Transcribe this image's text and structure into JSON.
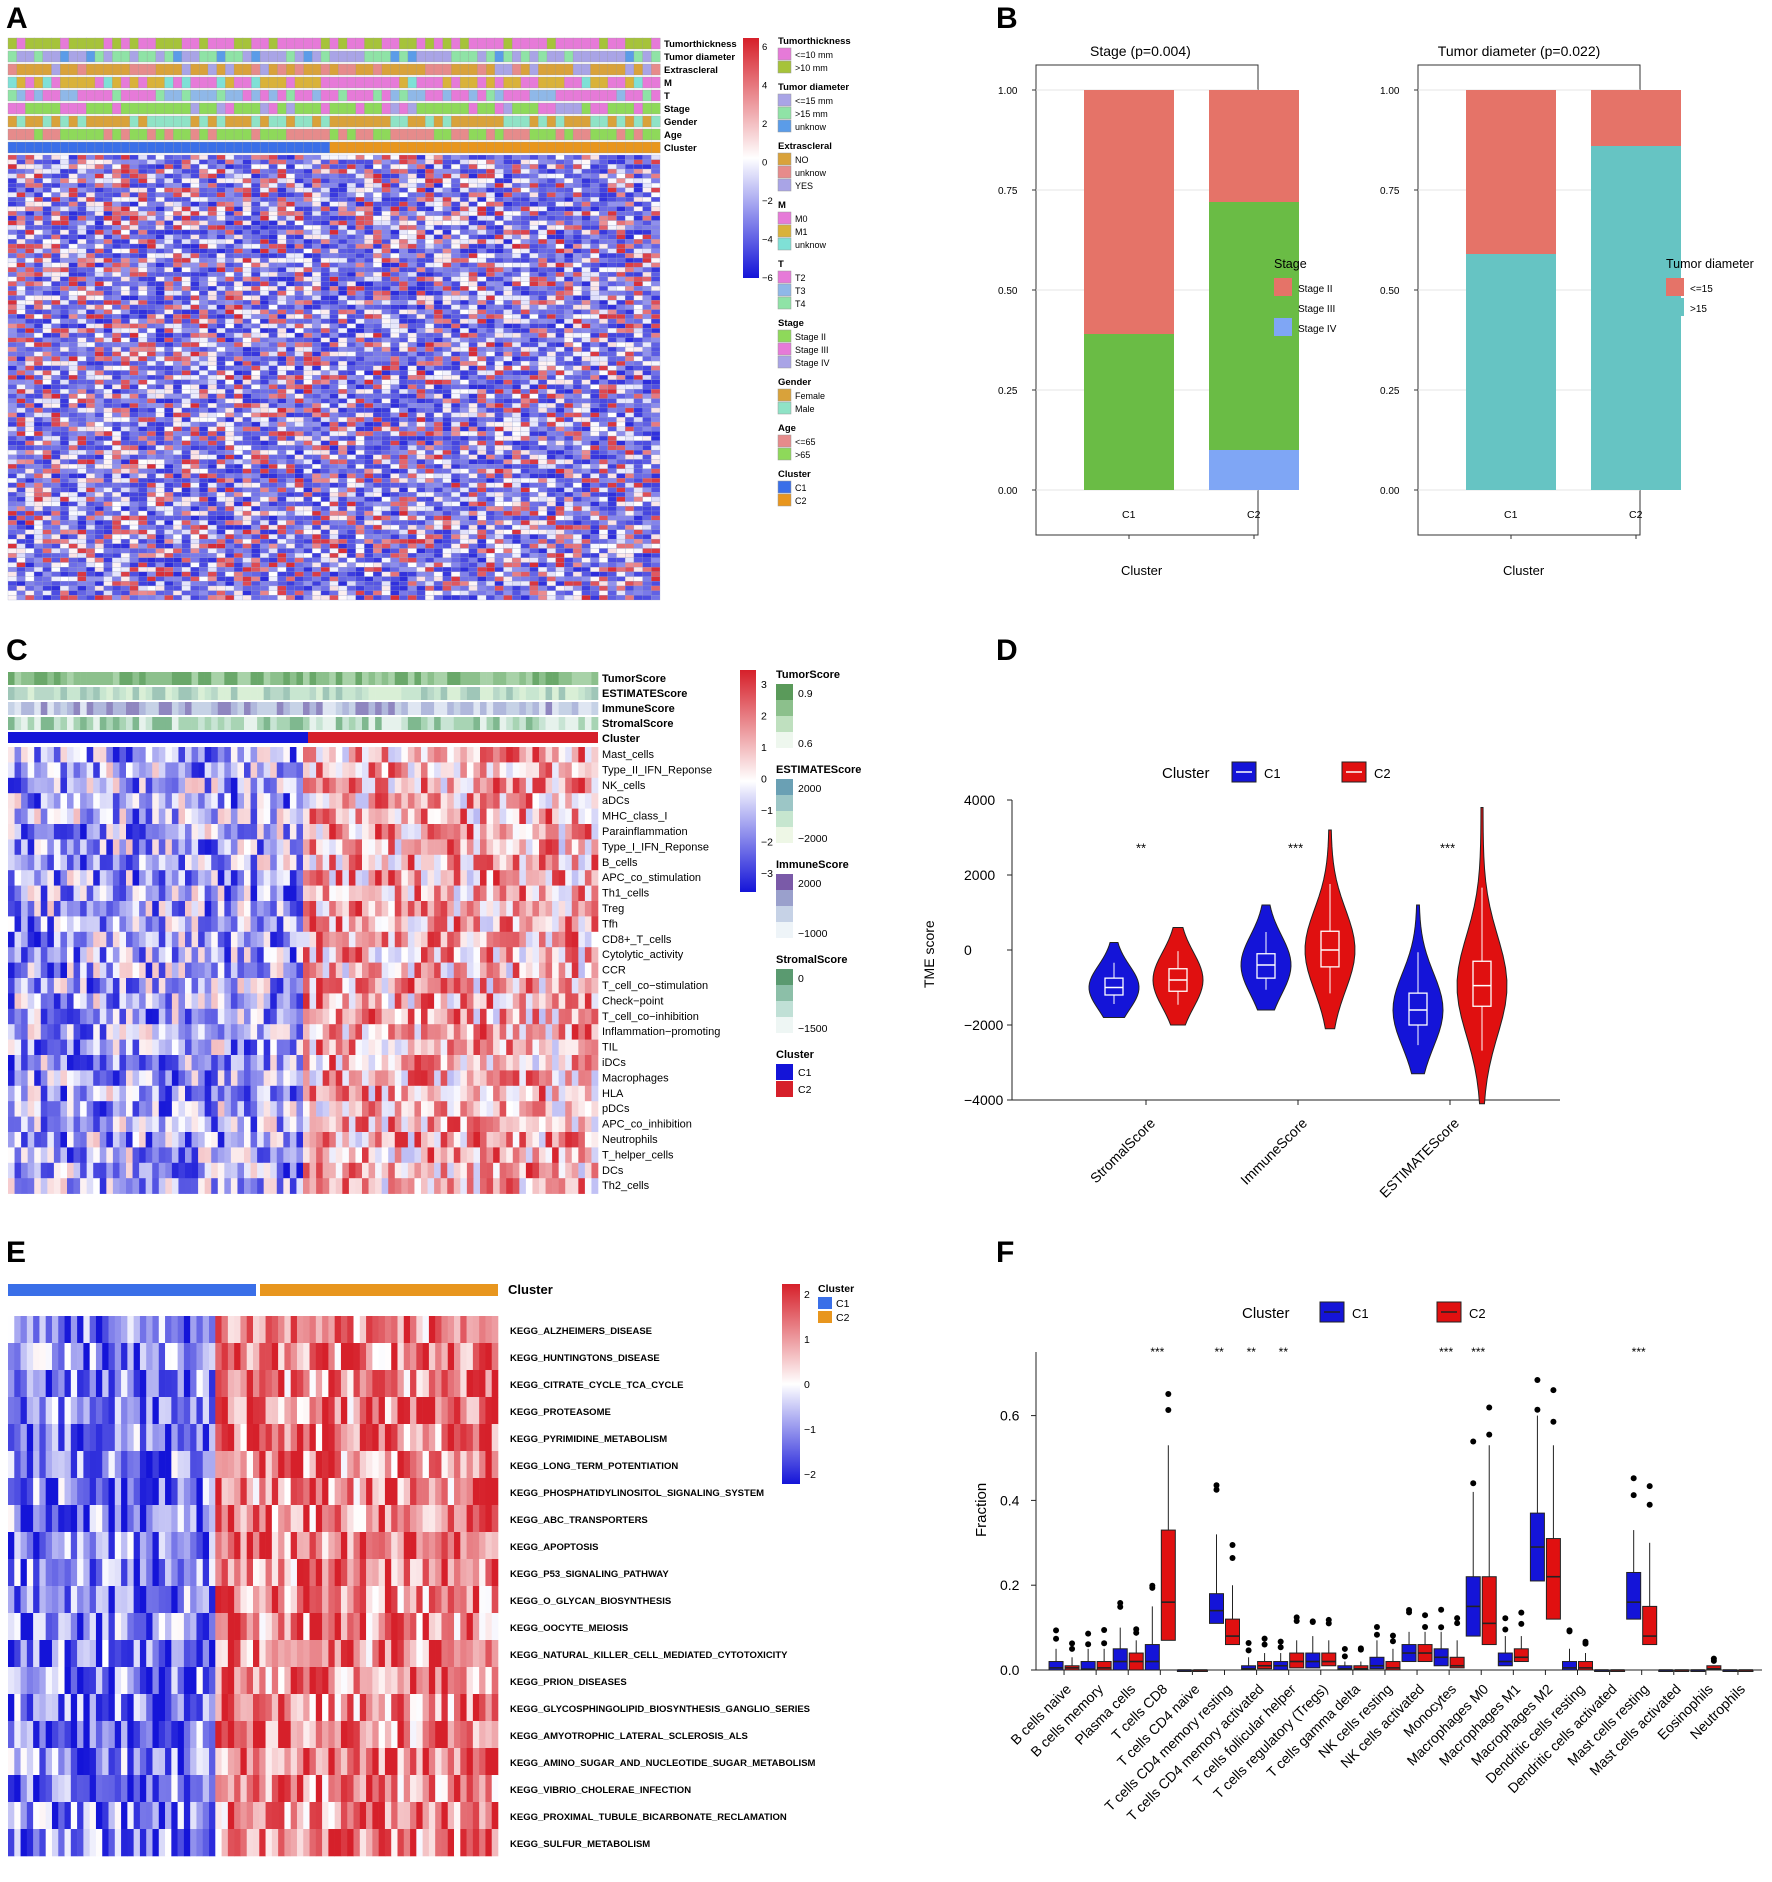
{
  "panels": {
    "A": "A",
    "B": "B",
    "C": "C",
    "D": "D",
    "E": "E",
    "F": "F"
  },
  "colors": {
    "red": "#d6202a",
    "blue": "#1414d8",
    "white": "#ffffff",
    "c1_blue": "#3a6fe8",
    "c2_orange": "#e8961e",
    "stageII": "#e57368",
    "stageIII": "#6abc45",
    "stageIV": "#7fa6f5",
    "teal": "#66c4c3",
    "d_blue": "#1414d8",
    "d_red": "#e01010"
  },
  "panelA": {
    "annotation_rows": [
      "Tumorthickness",
      "Tumor diameter",
      "Extrascleral",
      "M",
      "T",
      "Stage",
      "Gender",
      "Age",
      "Cluster"
    ],
    "scale_ticks": [
      "6",
      "4",
      "2",
      "0",
      "−2",
      "−4",
      "−6"
    ],
    "legend": [
      {
        "title": "Tumorthickness",
        "items": [
          {
            "label": "<=10 mm",
            "color": "#e67ad8"
          },
          {
            "label": ">10 mm",
            "color": "#a6c33a"
          }
        ]
      },
      {
        "title": "Tumor diameter",
        "items": [
          {
            "label": "<=15 mm",
            "color": "#a9a4e6"
          },
          {
            "label": ">15 mm",
            "color": "#8fe3a6"
          },
          {
            "label": "unknow",
            "color": "#5b9ce8"
          }
        ]
      },
      {
        "title": "Extrascleral",
        "items": [
          {
            "label": "NO",
            "color": "#d9a23a"
          },
          {
            "label": "unknow",
            "color": "#e68b8b"
          },
          {
            "label": "YES",
            "color": "#a9a4e6"
          }
        ]
      },
      {
        "title": "M",
        "items": [
          {
            "label": "M0",
            "color": "#e67ad8"
          },
          {
            "label": "M1",
            "color": "#d9b23a"
          },
          {
            "label": "unknow",
            "color": "#7fe0d6"
          }
        ]
      },
      {
        "title": "T",
        "items": [
          {
            "label": "T2",
            "color": "#e67ad8"
          },
          {
            "label": "T3",
            "color": "#8fb8e8"
          },
          {
            "label": "T4",
            "color": "#8fe3a6"
          }
        ]
      },
      {
        "title": "Stage",
        "items": [
          {
            "label": "Stage II",
            "color": "#8ed95a"
          },
          {
            "label": "Stage III",
            "color": "#e67ad8"
          },
          {
            "label": "Stage IV",
            "color": "#a9a4e6"
          }
        ]
      },
      {
        "title": "Gender",
        "items": [
          {
            "label": "Female",
            "color": "#d9a23a"
          },
          {
            "label": "Male",
            "color": "#8fe3c6"
          }
        ]
      },
      {
        "title": "Age",
        "items": [
          {
            "label": "<=65",
            "color": "#e68b8b"
          },
          {
            "label": ">65",
            "color": "#8ed95a"
          }
        ]
      },
      {
        "title": "Cluster",
        "items": [
          {
            "label": "C1",
            "color": "#3a6fe8"
          },
          {
            "label": "C2",
            "color": "#e8961e"
          }
        ]
      }
    ]
  },
  "panelC": {
    "annotation_rows": [
      "TumorScore",
      "ESTIMATEScore",
      "ImmuneScore",
      "StromalScore",
      "Cluster"
    ],
    "genesets": [
      "Mast_cells",
      "Type_II_IFN_Reponse",
      "NK_cells",
      "aDCs",
      "MHC_class_I",
      "Parainflammation",
      "Type_I_IFN_Reponse",
      "B_cells",
      "APC_co_stimulation",
      "Th1_cells",
      "Treg",
      "Tfh",
      "CD8+_T_cells",
      "Cytolytic_activity",
      "CCR",
      "T_cell_co−stimulation",
      "Check−point",
      "T_cell_co−inhibition",
      "Inflammation−promoting",
      "TIL",
      "iDCs",
      "Macrophages",
      "HLA",
      "pDCs",
      "APC_co_inhibition",
      "Neutrophils",
      "T_helper_cells",
      "DCs",
      "Th2_cells"
    ],
    "scale_ticks": [
      "3",
      "2",
      "1",
      "0",
      "−1",
      "−2",
      "−3"
    ],
    "legend": [
      {
        "title": "TumorScore",
        "ticks": [
          "0.9",
          "0.6"
        ],
        "colors": [
          "#5a9a5a",
          "#8cc08c",
          "#bfe0bf",
          "#eef7ee"
        ]
      },
      {
        "title": "ESTIMATEScore",
        "ticks": [
          "2000",
          "−2000"
        ],
        "colors": [
          "#6aa0b4",
          "#9cc6c6",
          "#c6e6cf",
          "#eef7e6"
        ]
      },
      {
        "title": "ImmuneScore",
        "ticks": [
          "2000",
          "−1000"
        ],
        "colors": [
          "#7a5aa8",
          "#9aa0cc",
          "#c6d2e6",
          "#eef4f8"
        ]
      },
      {
        "title": "StromalScore",
        "ticks": [
          "0",
          "−1500"
        ],
        "colors": [
          "#5a9a70",
          "#8cbfa8",
          "#c0e0d6",
          "#eef6f4"
        ]
      },
      {
        "title": "Cluster",
        "items": [
          {
            "label": "C1",
            "color": "#1414d8"
          },
          {
            "label": "C2",
            "color": "#d6202a"
          }
        ]
      }
    ]
  },
  "panelE": {
    "cluster_label": "Cluster",
    "pathways": [
      "KEGG_ALZHEIMERS_DISEASE",
      "KEGG_HUNTINGTONS_DISEASE",
      "KEGG_CITRATE_CYCLE_TCA_CYCLE",
      "KEGG_PROTEASOME",
      "KEGG_PYRIMIDINE_METABOLISM",
      "KEGG_LONG_TERM_POTENTIATION",
      "KEGG_PHOSPHATIDYLINOSITOL_SIGNALING_SYSTEM",
      "KEGG_ABC_TRANSPORTERS",
      "KEGG_APOPTOSIS",
      "KEGG_P53_SIGNALING_PATHWAY",
      "KEGG_O_GLYCAN_BIOSYNTHESIS",
      "KEGG_OOCYTE_MEIOSIS",
      "KEGG_NATURAL_KILLER_CELL_MEDIATED_CYTOTOXICITY",
      "KEGG_PRION_DISEASES",
      "KEGG_GLYCOSPHINGOLIPID_BIOSYNTHESIS_GANGLIO_SERIES",
      "KEGG_AMYOTROPHIC_LATERAL_SCLEROSIS_ALS",
      "KEGG_AMINO_SUGAR_AND_NUCLEOTIDE_SUGAR_METABOLISM",
      "KEGG_VIBRIO_CHOLERAE_INFECTION",
      "KEGG_PROXIMAL_TUBULE_BICARBONATE_RECLAMATION",
      "KEGG_SULFUR_METABOLISM"
    ],
    "scale_ticks": [
      "2",
      "1",
      "0",
      "−1",
      "−2"
    ],
    "legend": {
      "title": "Cluster",
      "items": [
        {
          "label": "C1",
          "color": "#3a6fe8"
        },
        {
          "label": "C2",
          "color": "#e8961e"
        }
      ]
    }
  },
  "chart_data": [
    {
      "panel": "B-left",
      "type": "bar",
      "title": "Stage (p=0.004)",
      "xlabel": "Cluster",
      "ylabel": "",
      "categories": [
        "C1",
        "C2"
      ],
      "stacked": true,
      "ylim": [
        0,
        1
      ],
      "yticks": [
        "0.00",
        "0.25",
        "0.50",
        "0.75",
        "1.00"
      ],
      "legend_title": "Stage",
      "series": [
        {
          "name": "Stage IV",
          "values": [
            0.0,
            0.1
          ]
        },
        {
          "name": "Stage III",
          "values": [
            0.39,
            0.62
          ]
        },
        {
          "name": "Stage II",
          "values": [
            0.61,
            0.28
          ]
        }
      ]
    },
    {
      "panel": "B-right",
      "type": "bar",
      "title": "Tumor diameter (p=0.022)",
      "xlabel": "Cluster",
      "ylabel": "",
      "categories": [
        "C1",
        "C2"
      ],
      "stacked": true,
      "ylim": [
        0,
        1
      ],
      "yticks": [
        "0.00",
        "0.25",
        "0.50",
        "0.75",
        "1.00"
      ],
      "legend_title": "Tumor diameter",
      "series": [
        {
          "name": ">15",
          "values": [
            0.59,
            0.86
          ]
        },
        {
          "name": "<=15",
          "values": [
            0.41,
            0.14
          ]
        }
      ]
    },
    {
      "panel": "D",
      "type": "violin",
      "title": "",
      "legend_title": "Cluster",
      "legend": [
        "C1",
        "C2"
      ],
      "ylabel": "TME score",
      "ylim": [
        -4000,
        4000
      ],
      "yticks": [
        -4000,
        -2000,
        0,
        2000,
        4000
      ],
      "categories": [
        "StromalScore",
        "ImmuneScore",
        "ESTIMATEScore"
      ],
      "significance": [
        "**",
        "***",
        "***"
      ],
      "series": [
        {
          "name": "C1",
          "median": [
            -1000,
            -400,
            -1600
          ],
          "q1": [
            -1200,
            -750,
            -2000
          ],
          "q3": [
            -750,
            -100,
            -1150
          ],
          "min": [
            -1800,
            -1600,
            -3300
          ],
          "max": [
            200,
            1200,
            1200
          ]
        },
        {
          "name": "C2",
          "median": [
            -800,
            0,
            -950
          ],
          "q1": [
            -1100,
            -450,
            -1500
          ],
          "q3": [
            -500,
            500,
            -300
          ],
          "min": [
            -2000,
            -2100,
            -4100
          ],
          "max": [
            600,
            3200,
            3800
          ]
        }
      ]
    },
    {
      "panel": "F",
      "type": "box",
      "title": "",
      "legend_title": "Cluster",
      "legend": [
        "C1",
        "C2"
      ],
      "ylabel": "Fraction",
      "ylim": [
        0,
        0.75
      ],
      "yticks": [
        "0.0",
        "0.2",
        "0.4",
        "0.6"
      ],
      "categories": [
        "B cells naive",
        "B cells memory",
        "Plasma cells",
        "T cells CD8",
        "T cells CD4 naive",
        "T cells CD4 memory resting",
        "T cells CD4 memory activated",
        "T cells follicular helper",
        "T cells regulatory (Tregs)",
        "T cells gamma delta",
        "NK cells resting",
        "NK cells activated",
        "Monocytes",
        "Macrophages M0",
        "Macrophages M1",
        "Macrophages M2",
        "Dendritic cells resting",
        "Dendritic cells activated",
        "Mast cells resting",
        "Mast cells activated",
        "Eosinophils",
        "Neutrophils"
      ],
      "significance": [
        "",
        "",
        "",
        "***",
        "",
        "**",
        "**",
        "**",
        "",
        "",
        "",
        "",
        "***",
        "***",
        "",
        "",
        "",
        "",
        "***",
        "",
        "",
        ""
      ],
      "series": [
        {
          "name": "C1",
          "q1": [
            0,
            0,
            0,
            0,
            0,
            0.11,
            0,
            0,
            0.005,
            0,
            0.003,
            0.02,
            0.01,
            0.08,
            0.01,
            0.21,
            0,
            0,
            0.12,
            0,
            0,
            0
          ],
          "median": [
            0.005,
            0.002,
            0.02,
            0.02,
            0,
            0.14,
            0.003,
            0.01,
            0.02,
            0.003,
            0.01,
            0.04,
            0.03,
            0.15,
            0.02,
            0.29,
            0.005,
            0,
            0.16,
            0,
            0,
            0
          ],
          "q3": [
            0.02,
            0.02,
            0.05,
            0.06,
            0,
            0.18,
            0.01,
            0.02,
            0.04,
            0.01,
            0.03,
            0.06,
            0.05,
            0.22,
            0.04,
            0.37,
            0.02,
            0,
            0.23,
            0,
            0,
            0
          ],
          "max": [
            0.05,
            0.05,
            0.1,
            0.15,
            0,
            0.32,
            0.03,
            0.04,
            0.08,
            0.02,
            0.07,
            0.09,
            0.09,
            0.42,
            0.08,
            0.6,
            0.05,
            0,
            0.33,
            0,
            0,
            0
          ]
        },
        {
          "name": "C2",
          "q1": [
            0,
            0,
            0,
            0.07,
            0,
            0.06,
            0.003,
            0.005,
            0.01,
            0,
            0,
            0.02,
            0.005,
            0.06,
            0.02,
            0.12,
            0,
            0,
            0.06,
            0,
            0,
            0
          ],
          "median": [
            0.005,
            0.005,
            0.02,
            0.16,
            0,
            0.08,
            0.01,
            0.02,
            0.02,
            0.003,
            0.005,
            0.04,
            0.01,
            0.11,
            0.03,
            0.22,
            0.005,
            0,
            0.08,
            0,
            0.003,
            0
          ],
          "q3": [
            0.01,
            0.02,
            0.04,
            0.33,
            0,
            0.12,
            0.02,
            0.04,
            0.04,
            0.01,
            0.02,
            0.06,
            0.03,
            0.22,
            0.05,
            0.31,
            0.02,
            0,
            0.15,
            0,
            0.01,
            0
          ],
          "max": [
            0.03,
            0.05,
            0.07,
            0.53,
            0,
            0.2,
            0.04,
            0.07,
            0.07,
            0.02,
            0.05,
            0.09,
            0.07,
            0.53,
            0.08,
            0.53,
            0.04,
            0,
            0.3,
            0,
            0.01,
            0
          ]
        }
      ],
      "outlier_note": ""
    }
  ]
}
